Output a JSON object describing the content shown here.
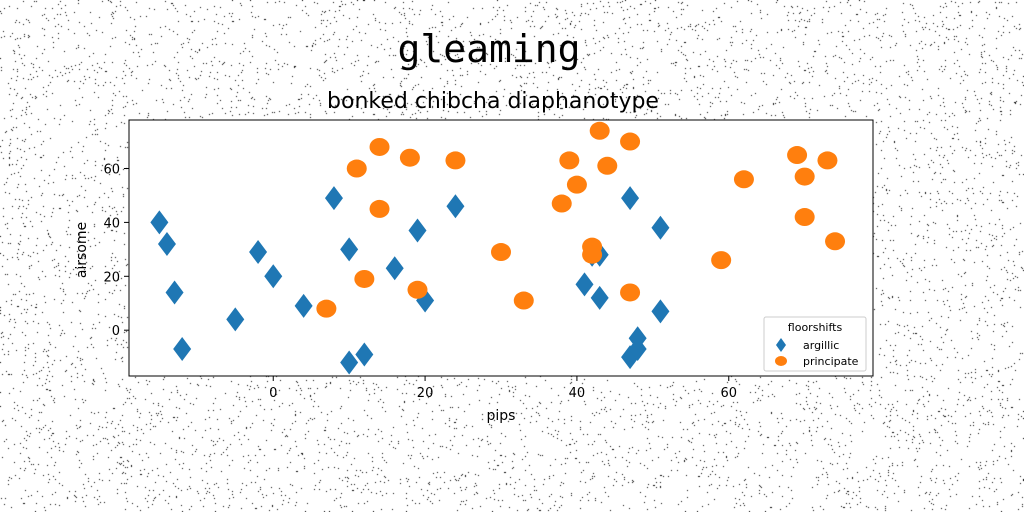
{
  "chart_data": {
    "type": "scatter",
    "title": "gleaming",
    "subtitle": "bonked chibcha diaphanotype",
    "xlabel": "pips",
    "ylabel": "airsome",
    "xlim": [
      -19,
      79
    ],
    "ylim": [
      -17,
      78
    ],
    "xticks": [
      0,
      20,
      40,
      60
    ],
    "yticks": [
      0,
      20,
      40,
      60
    ],
    "grid": false,
    "legend": {
      "title": "floorshifts",
      "placement": "lower-right"
    },
    "series": [
      {
        "name": "argillic",
        "marker": "diamond",
        "color": "#1f77b4",
        "points": [
          [
            -15,
            40
          ],
          [
            -14,
            32
          ],
          [
            -13,
            14
          ],
          [
            -12,
            -7
          ],
          [
            -5,
            4
          ],
          [
            -2,
            29
          ],
          [
            0,
            20
          ],
          [
            4,
            9
          ],
          [
            8,
            49
          ],
          [
            10,
            30
          ],
          [
            10,
            -12
          ],
          [
            12,
            -9
          ],
          [
            16,
            23
          ],
          [
            19,
            37
          ],
          [
            20,
            11
          ],
          [
            24,
            46
          ],
          [
            41,
            17
          ],
          [
            42,
            28
          ],
          [
            43,
            28
          ],
          [
            43,
            12
          ],
          [
            47,
            49
          ],
          [
            47,
            -10
          ],
          [
            48,
            -7
          ],
          [
            48,
            -3
          ],
          [
            51,
            7
          ],
          [
            51,
            38
          ]
        ]
      },
      {
        "name": "principate",
        "marker": "circle",
        "color": "#ff7f0e",
        "points": [
          [
            7,
            8
          ],
          [
            11,
            60
          ],
          [
            12,
            19
          ],
          [
            14,
            45
          ],
          [
            14,
            68
          ],
          [
            18,
            64
          ],
          [
            19,
            15
          ],
          [
            24,
            63
          ],
          [
            30,
            29
          ],
          [
            33,
            11
          ],
          [
            38,
            47
          ],
          [
            39,
            63
          ],
          [
            40,
            54
          ],
          [
            42,
            31
          ],
          [
            42,
            28
          ],
          [
            43,
            74
          ],
          [
            44,
            61
          ],
          [
            47,
            14
          ],
          [
            47,
            70
          ],
          [
            59,
            26
          ],
          [
            62,
            56
          ],
          [
            69,
            65
          ],
          [
            70,
            57
          ],
          [
            70,
            42
          ],
          [
            73,
            63
          ],
          [
            74,
            33
          ]
        ]
      }
    ]
  }
}
